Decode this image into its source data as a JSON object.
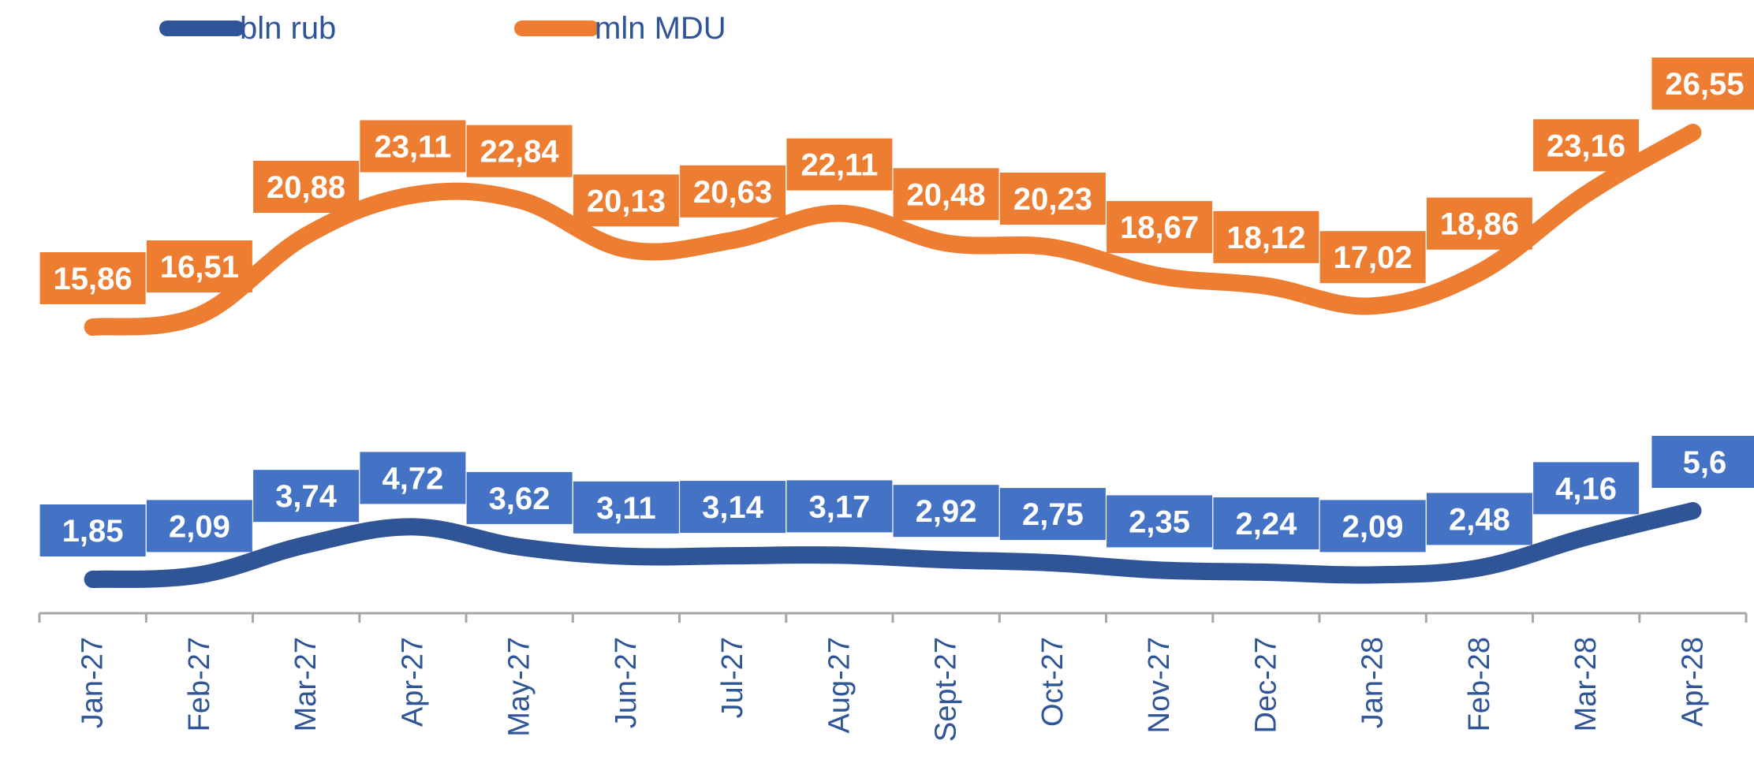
{
  "chart_data": {
    "type": "line",
    "categories": [
      "Jan-27",
      "Feb-27",
      "Mar-27",
      "Apr-27",
      "May-27",
      "Jun-27",
      "Jul-27",
      "Aug-27",
      "Sept-27",
      "Oct-27",
      "Nov-27",
      "Dec-27",
      "Jan-28",
      "Feb-28",
      "Mar-28",
      "Apr-28"
    ],
    "series": [
      {
        "name": "bln rub",
        "color": "#2F5597",
        "label_color": "#4472C4",
        "values": [
          1.85,
          2.09,
          3.74,
          4.72,
          3.62,
          3.11,
          3.14,
          3.17,
          2.92,
          2.75,
          2.35,
          2.24,
          2.09,
          2.48,
          4.16,
          5.6
        ],
        "labels": [
          "1,85",
          "2,09",
          "3,74",
          "4,72",
          "3,62",
          "3,11",
          "3,14",
          "3,17",
          "2,92",
          "2,75",
          "2,35",
          "2,24",
          "2,09",
          "2,48",
          "4,16",
          "5,6"
        ]
      },
      {
        "name": "mln MDU",
        "color": "#ED7D31",
        "label_color": "#ED7D31",
        "values": [
          15.86,
          16.51,
          20.88,
          23.11,
          22.84,
          20.13,
          20.63,
          22.11,
          20.48,
          20.23,
          18.67,
          18.12,
          17.02,
          18.86,
          23.16,
          26.55
        ],
        "labels": [
          "15,86",
          "16,51",
          "20,88",
          "23,11",
          "22,84",
          "20,13",
          "20,63",
          "22,11",
          "20,48",
          "20,23",
          "18,67",
          "18,12",
          "17,02",
          "18,86",
          "23,16",
          "26,55"
        ]
      }
    ],
    "axis_color": "#A6A6A6",
    "tick_label_color": "#2F5597",
    "legend_placement": "top-left",
    "grid": false,
    "xlabel": "",
    "ylabel": ""
  }
}
